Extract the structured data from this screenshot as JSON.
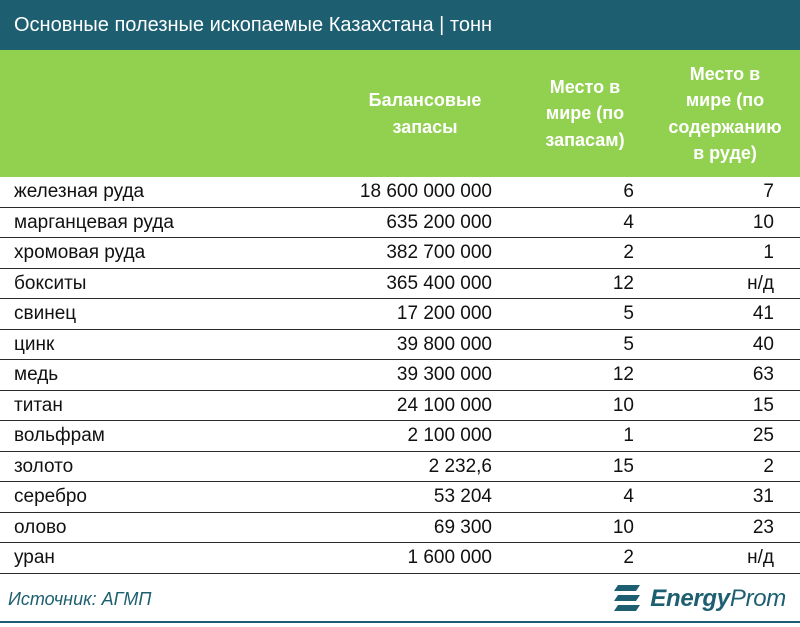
{
  "title": "Основные полезные ископаемые Казахстана | тонн",
  "columns": {
    "reserves": "Балансовые\nзапасы",
    "rank_reserves": "Место в\nмире (по\nзапасам)",
    "rank_content": "Место в\nмире (по\nсодержанию\nв руде)"
  },
  "rows": [
    {
      "name": "железная руда",
      "reserves": "18 600 000 000",
      "rank_reserves": "6",
      "rank_content": "7"
    },
    {
      "name": "марганцевая руда",
      "reserves": "635 200 000",
      "rank_reserves": "4",
      "rank_content": "10"
    },
    {
      "name": "хромовая руда",
      "reserves": "382 700 000",
      "rank_reserves": "2",
      "rank_content": "1"
    },
    {
      "name": "бокситы",
      "reserves": "365 400 000",
      "rank_reserves": "12",
      "rank_content": "н/д"
    },
    {
      "name": "свинец",
      "reserves": "17 200 000",
      "rank_reserves": "5",
      "rank_content": "41"
    },
    {
      "name": "цинк",
      "reserves": "39 800 000",
      "rank_reserves": "5",
      "rank_content": "40"
    },
    {
      "name": "медь",
      "reserves": "39 300 000",
      "rank_reserves": "12",
      "rank_content": "63"
    },
    {
      "name": "титан",
      "reserves": "24 100 000",
      "rank_reserves": "10",
      "rank_content": "15"
    },
    {
      "name": "вольфрам",
      "reserves": "2 100 000",
      "rank_reserves": "1",
      "rank_content": "25"
    },
    {
      "name": "золото",
      "reserves": "2 232,6",
      "rank_reserves": "15",
      "rank_content": "2"
    },
    {
      "name": "серебро",
      "reserves": "53 204",
      "rank_reserves": "4",
      "rank_content": "31"
    },
    {
      "name": "олово",
      "reserves": "69 300",
      "rank_reserves": "10",
      "rank_content": "23"
    },
    {
      "name": "уран",
      "reserves": "1 600 000",
      "rank_reserves": "2",
      "rank_content": "н/д"
    }
  ],
  "source": "Источник: АГМП",
  "logo": {
    "energy": "Energy",
    "prom": "Prom",
    "icon": "energyprom-logo-icon"
  },
  "colors": {
    "title_bg": "#1d5f70",
    "header_bg": "#92d050",
    "brand": "#1d5f70"
  }
}
